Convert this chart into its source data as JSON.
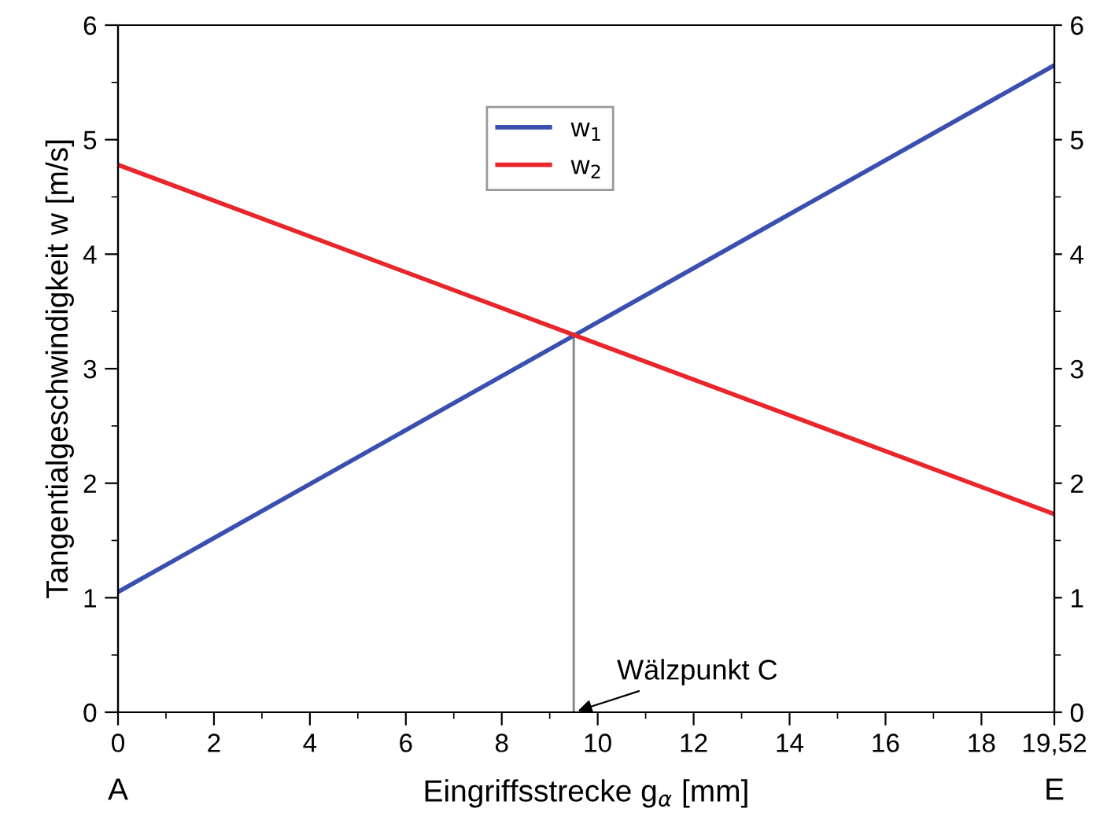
{
  "chart_data": {
    "type": "line",
    "xlabel": "Eingriffsstrecke g$_{α}$ [mm]",
    "ylabel": "Tangentialgeschwindigkeit w [m/s]",
    "series": [
      {
        "name": "w$_{1}$",
        "color": "#3a4fb0",
        "values": [
          1.05,
          5.65
        ]
      },
      {
        "name": "w$_{2}$",
        "color": "#e8262c",
        "values": [
          4.78,
          1.73
        ]
      }
    ],
    "x": [
      0,
      19.52
    ],
    "xlim": [
      0,
      19.52
    ],
    "xticks": [
      0,
      2,
      4,
      6,
      8,
      10,
      12,
      14,
      16,
      18,
      {
        "value": 19.52,
        "label": "19,52"
      }
    ],
    "ylim": [
      0,
      6
    ],
    "yticks": [
      0,
      1,
      2,
      3,
      4,
      5,
      6
    ],
    "y2lim": [
      0,
      6
    ],
    "y2ticks": [
      0,
      1,
      2,
      3,
      4,
      5,
      6
    ],
    "ref_lines": [
      {
        "axis": "x",
        "value": 9.5,
        "label": "Wälzpunkt C",
        "color": "#808080"
      }
    ],
    "annotations": [
      "A",
      "E"
    ],
    "legend": "top",
    "grid": false
  }
}
